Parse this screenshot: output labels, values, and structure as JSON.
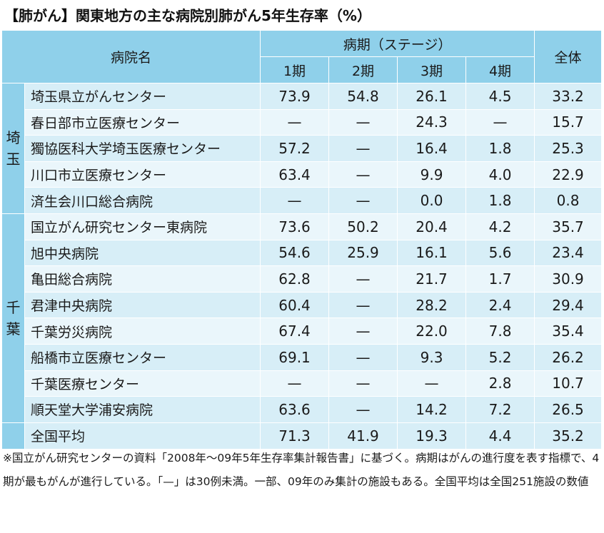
{
  "title": "【肺がん】関東地方の主な病院別肺がん5年生存率（%）",
  "header": {
    "hospital": "病院名",
    "stage_group": "病期（ステージ）",
    "stages": [
      "1期",
      "2期",
      "3期",
      "4期"
    ],
    "overall": "全体"
  },
  "regions": {
    "saitama": "埼玉",
    "chiba": "千葉"
  },
  "rows": [
    {
      "name": "埼玉県立がんセンター",
      "s1": "73.9",
      "s2": "54.8",
      "s3": "26.1",
      "s4": "4.5",
      "all": "33.2"
    },
    {
      "name": "春日部市立医療センター",
      "s1": "—",
      "s2": "—",
      "s3": "24.3",
      "s4": "—",
      "all": "15.7"
    },
    {
      "name": "獨協医科大学埼玉医療センター",
      "s1": "57.2",
      "s2": "—",
      "s3": "16.4",
      "s4": "1.8",
      "all": "25.3"
    },
    {
      "name": "川口市立医療センター",
      "s1": "63.4",
      "s2": "—",
      "s3": "9.9",
      "s4": "4.0",
      "all": "22.9"
    },
    {
      "name": "済生会川口総合病院",
      "s1": "—",
      "s2": "—",
      "s3": "0.0",
      "s4": "1.8",
      "all": "0.8"
    },
    {
      "name": "国立がん研究センター東病院",
      "s1": "73.6",
      "s2": "50.2",
      "s3": "20.4",
      "s4": "4.2",
      "all": "35.7"
    },
    {
      "name": "旭中央病院",
      "s1": "54.6",
      "s2": "25.9",
      "s3": "16.1",
      "s4": "5.6",
      "all": "23.4"
    },
    {
      "name": "亀田総合病院",
      "s1": "62.8",
      "s2": "—",
      "s3": "21.7",
      "s4": "1.7",
      "all": "30.9"
    },
    {
      "name": "君津中央病院",
      "s1": "60.4",
      "s2": "—",
      "s3": "28.2",
      "s4": "2.4",
      "all": "29.4"
    },
    {
      "name": "千葉労災病院",
      "s1": "67.4",
      "s2": "—",
      "s3": "22.0",
      "s4": "7.8",
      "all": "35.4"
    },
    {
      "name": "船橋市立医療センター",
      "s1": "69.1",
      "s2": "—",
      "s3": "9.3",
      "s4": "5.2",
      "all": "26.2"
    },
    {
      "name": "千葉医療センター",
      "s1": "—",
      "s2": "—",
      "s3": "—",
      "s4": "2.8",
      "all": "10.7"
    },
    {
      "name": "順天堂大学浦安病院",
      "s1": "63.6",
      "s2": "—",
      "s3": "14.2",
      "s4": "7.2",
      "all": "26.5"
    }
  ],
  "national_average": {
    "name": "全国平均",
    "s1": "71.3",
    "s2": "41.9",
    "s3": "19.3",
    "s4": "4.4",
    "all": "35.2"
  },
  "footnote": "※国立がん研究センターの資料「2008年〜09年5年生存率集計報告書」に基づく。病期はがんの進行度を表す指標で、4期が最もがんが進行している。「—」は30例未満。一部、09年のみ集計の施設もある。全国平均は全国251施設の数値",
  "colors": {
    "header_bg": "#8fd0ea",
    "row_odd": "#d7eef7",
    "row_even": "#eaf6fb"
  }
}
